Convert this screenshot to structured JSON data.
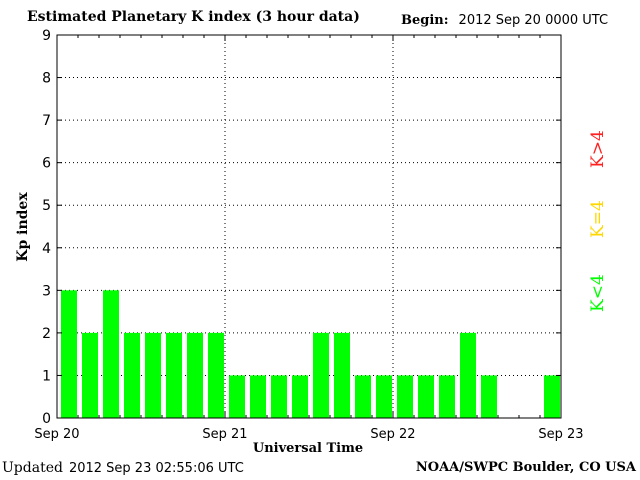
{
  "header": {
    "title": "Estimated Planetary K index (3 hour data)",
    "begin_label": "Begin:",
    "begin_value": "2012 Sep 20 0000 UTC"
  },
  "footer": {
    "updated_label": "Updated",
    "updated_value": "2012 Sep 23 02:55:06 UTC",
    "source": "NOAA/SWPC Boulder, CO USA"
  },
  "legend": [
    {
      "label": "K>4",
      "color": "#ff2020"
    },
    {
      "label": "K=4",
      "color": "#ffd700"
    },
    {
      "label": "K<4",
      "color": "#00ff00"
    }
  ],
  "chart_data": {
    "type": "bar",
    "title": "Estimated Planetary K index (3 hour data)",
    "xlabel": "Universal Time",
    "ylabel": "Kp index",
    "ylim": [
      0,
      9
    ],
    "yticks": [
      0,
      1,
      2,
      3,
      4,
      5,
      6,
      7,
      8,
      9
    ],
    "xtick_labels": [
      "Sep 20",
      "Sep 21",
      "Sep 22",
      "Sep 23"
    ],
    "bar_color": "#00ff00",
    "grid": "dotted",
    "bins_per_day": 8,
    "values": [
      3,
      2,
      3,
      2,
      2,
      2,
      2,
      2,
      1,
      1,
      1,
      1,
      2,
      2,
      1,
      1,
      1,
      1,
      1,
      2,
      1,
      null,
      null,
      1
    ]
  }
}
